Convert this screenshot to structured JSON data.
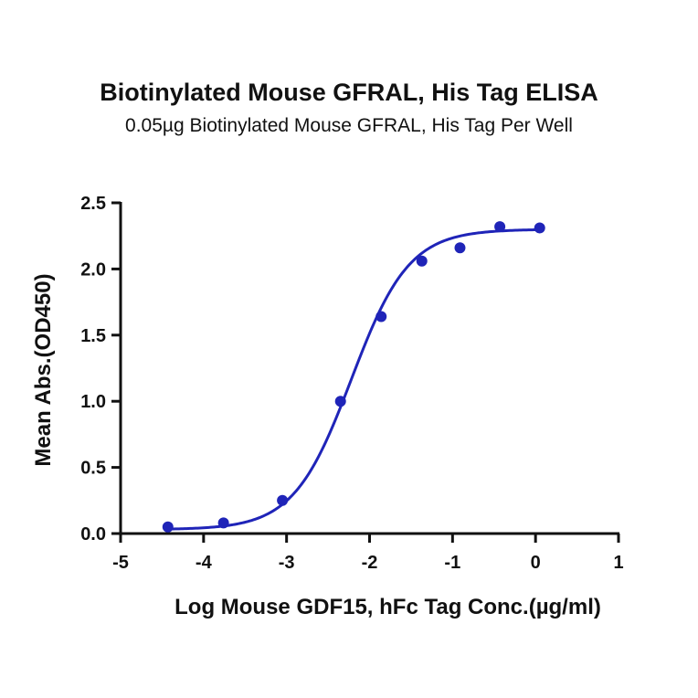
{
  "chart_data": {
    "type": "scatter",
    "title": "Biotinylated Mouse GFRAL, His Tag ELISA",
    "subtitle": "0.05µg Biotinylated Mouse GFRAL, His Tag Per Well",
    "xlabel": "Log Mouse GDF15, hFc Tag Conc.(µg/ml)",
    "ylabel": "Mean Abs.(OD450)",
    "xlim": [
      -5,
      1
    ],
    "ylim": [
      0,
      2.5
    ],
    "xticks": [
      "-5",
      "-4",
      "-3",
      "-2",
      "-1",
      "0",
      "1"
    ],
    "yticks": [
      "0.0",
      "0.5",
      "1.0",
      "1.5",
      "2.0",
      "2.5"
    ],
    "grid": false,
    "color": "#1f24b8",
    "series": [
      {
        "x": [
          -4.43,
          -3.76,
          -3.05,
          -2.35,
          -1.86,
          -1.37,
          -0.91,
          -0.43,
          0.05
        ],
        "y": [
          0.05,
          0.08,
          0.25,
          1.0,
          1.64,
          2.06,
          2.16,
          2.32,
          2.31
        ]
      }
    ],
    "fit": {
      "model": "four-parameter logistic",
      "bottom": 0.03,
      "top": 2.3,
      "log_ec50": -2.22,
      "hill_slope": 1.25
    }
  }
}
